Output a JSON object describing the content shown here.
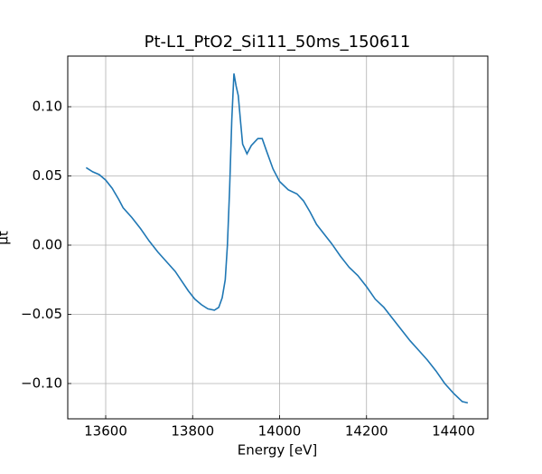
{
  "chart_data": {
    "type": "line",
    "title": "Pt-L1_PtO2_Si111_50ms_150611",
    "xlabel": "Energy [eV]",
    "ylabel": "μt",
    "x": [
      13555,
      13570,
      13585,
      13600,
      13615,
      13630,
      13640,
      13660,
      13680,
      13700,
      13720,
      13740,
      13760,
      13775,
      13790,
      13805,
      13820,
      13835,
      13850,
      13860,
      13868,
      13875,
      13880,
      13885,
      13890,
      13895,
      13900,
      13905,
      13910,
      13915,
      13925,
      13935,
      13950,
      13960,
      13970,
      13985,
      14000,
      14020,
      14040,
      14055,
      14070,
      14085,
      14100,
      14120,
      14140,
      14160,
      14180,
      14200,
      14220,
      14240,
      14260,
      14280,
      14300,
      14320,
      14340,
      14360,
      14380,
      14400,
      14420,
      14433
    ],
    "series": [
      {
        "name": "Pt-L1_PtO2_Si111_50ms_150611",
        "color": "#1f77b4",
        "values": [
          0.056,
          0.053,
          0.051,
          0.047,
          0.041,
          0.033,
          0.027,
          0.02,
          0.012,
          0.003,
          -0.005,
          -0.012,
          -0.019,
          -0.026,
          -0.033,
          -0.039,
          -0.043,
          -0.046,
          -0.047,
          -0.045,
          -0.038,
          -0.025,
          0.0,
          0.04,
          0.09,
          0.124,
          0.115,
          0.108,
          0.09,
          0.073,
          0.066,
          0.072,
          0.077,
          0.077,
          0.068,
          0.055,
          0.046,
          0.04,
          0.037,
          0.032,
          0.024,
          0.015,
          0.009,
          0.001,
          -0.008,
          -0.016,
          -0.022,
          -0.03,
          -0.039,
          -0.045,
          -0.053,
          -0.061,
          -0.069,
          -0.076,
          -0.083,
          -0.091,
          -0.1,
          -0.107,
          -0.113,
          -0.114
        ]
      }
    ],
    "xlim": [
      13512.7,
      14479
    ],
    "ylim": [
      -0.1255,
      0.1366
    ],
    "xticks": [
      13600,
      13800,
      14000,
      14200,
      14400
    ],
    "yticks": [
      {
        "value": -0.1,
        "label": "−0.10"
      },
      {
        "value": -0.05,
        "label": "−0.05"
      },
      {
        "value": 0,
        "label": "0.00"
      },
      {
        "value": 0.05,
        "label": "0.05"
      },
      {
        "value": 0.1,
        "label": "0.10"
      }
    ],
    "grid": true
  }
}
